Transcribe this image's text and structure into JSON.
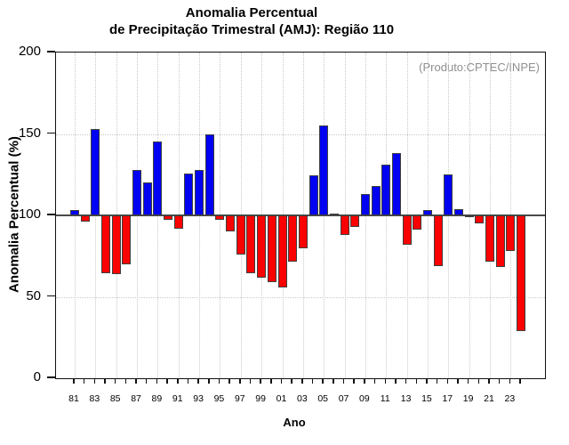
{
  "title": {
    "line1": "Anomalia Percentual",
    "line2": "de Precipitação Trimestral (AMJ): Região 110"
  },
  "annotation": "(Produto:CPTEC/INPE)",
  "axes": {
    "ylabel": "Anomalia Percentual (%)",
    "xlabel": "Ano"
  },
  "colors": {
    "bar_above": "#0202f2",
    "bar_below": "#fb0202",
    "bar_outline": "#3f3f3f",
    "baseline": "#4a4a4a",
    "grid": "#c9c9c9",
    "annotation": "#8f8f8f",
    "axis": "#101010"
  },
  "chart_data": {
    "type": "bar",
    "title": "Anomalia Percentual de Precipitação Trimestral (AMJ): Região 110",
    "xlabel": "Ano",
    "ylabel": "Anomalia Percentual (%)",
    "ylim": [
      0,
      200
    ],
    "yticks": [
      0,
      50,
      100,
      150,
      200
    ],
    "baseline": 100,
    "grid": "dotted",
    "legend": "none",
    "color_rule": "blue if value >= 100, red if value < 100",
    "categories": [
      "81",
      "82",
      "83",
      "84",
      "85",
      "86",
      "87",
      "88",
      "89",
      "90",
      "91",
      "92",
      "93",
      "94",
      "95",
      "96",
      "97",
      "98",
      "99",
      "00",
      "01",
      "02",
      "03",
      "04",
      "05",
      "06",
      "07",
      "08",
      "09",
      "10",
      "11",
      "12",
      "13",
      "14",
      "15",
      "16",
      "17",
      "18",
      "19",
      "20",
      "21",
      "22",
      "23",
      "24"
    ],
    "labeled_categories": [
      "81",
      "83",
      "85",
      "87",
      "89",
      "91",
      "93",
      "95",
      "97",
      "99",
      "01",
      "03",
      "05",
      "07",
      "09",
      "11",
      "13",
      "15",
      "17",
      "19",
      "21",
      "23"
    ],
    "values": [
      103.5,
      96,
      153,
      64.5,
      64,
      70,
      128,
      120,
      145.5,
      97.5,
      92,
      125.5,
      128,
      150,
      97,
      90,
      76,
      64.5,
      62,
      59,
      56,
      71.5,
      80,
      124.5,
      155,
      101,
      88,
      93,
      113,
      118,
      131,
      138.5,
      82,
      91,
      103.5,
      69,
      125,
      104,
      99.5,
      95,
      71.5,
      68.5,
      78,
      29
    ]
  }
}
